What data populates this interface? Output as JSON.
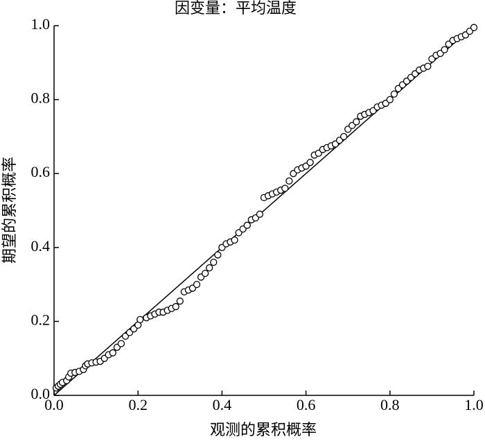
{
  "chart_data": {
    "type": "scatter",
    "title": "因变量：平均温度",
    "xlabel": "观测的累积概率",
    "ylabel": "期望的累积概率",
    "color": "#000000",
    "x": [
      0.005,
      0.01,
      0.015,
      0.02,
      0.03,
      0.035,
      0.04,
      0.05,
      0.06,
      0.07,
      0.075,
      0.08,
      0.09,
      0.1,
      0.11,
      0.12,
      0.13,
      0.14,
      0.15,
      0.16,
      0.17,
      0.18,
      0.19,
      0.2,
      0.205,
      0.22,
      0.23,
      0.24,
      0.25,
      0.26,
      0.27,
      0.28,
      0.29,
      0.3,
      0.31,
      0.32,
      0.33,
      0.34,
      0.35,
      0.36,
      0.37,
      0.38,
      0.39,
      0.4,
      0.41,
      0.42,
      0.43,
      0.44,
      0.45,
      0.46,
      0.47,
      0.48,
      0.49,
      0.5,
      0.51,
      0.52,
      0.53,
      0.54,
      0.55,
      0.56,
      0.57,
      0.58,
      0.59,
      0.6,
      0.61,
      0.62,
      0.63,
      0.64,
      0.65,
      0.66,
      0.67,
      0.68,
      0.69,
      0.7,
      0.71,
      0.72,
      0.73,
      0.74,
      0.75,
      0.76,
      0.77,
      0.78,
      0.79,
      0.8,
      0.81,
      0.82,
      0.83,
      0.84,
      0.85,
      0.86,
      0.87,
      0.88,
      0.89,
      0.9,
      0.91,
      0.92,
      0.93,
      0.94,
      0.95,
      0.96,
      0.97,
      0.98,
      0.99,
      1.0
    ],
    "values": [
      0.02,
      0.025,
      0.03,
      0.035,
      0.04,
      0.05,
      0.06,
      0.062,
      0.065,
      0.07,
      0.08,
      0.085,
      0.088,
      0.09,
      0.092,
      0.1,
      0.11,
      0.115,
      0.13,
      0.14,
      0.16,
      0.17,
      0.18,
      0.19,
      0.205,
      0.21,
      0.215,
      0.22,
      0.225,
      0.225,
      0.23,
      0.235,
      0.24,
      0.255,
      0.28,
      0.285,
      0.29,
      0.3,
      0.32,
      0.33,
      0.345,
      0.36,
      0.38,
      0.4,
      0.41,
      0.415,
      0.42,
      0.44,
      0.45,
      0.46,
      0.475,
      0.48,
      0.49,
      0.535,
      0.54,
      0.545,
      0.55,
      0.555,
      0.56,
      0.58,
      0.6,
      0.61,
      0.615,
      0.62,
      0.63,
      0.65,
      0.655,
      0.665,
      0.67,
      0.675,
      0.68,
      0.69,
      0.7,
      0.72,
      0.73,
      0.74,
      0.755,
      0.76,
      0.765,
      0.77,
      0.78,
      0.785,
      0.79,
      0.8,
      0.815,
      0.83,
      0.84,
      0.85,
      0.86,
      0.87,
      0.88,
      0.885,
      0.89,
      0.91,
      0.92,
      0.925,
      0.935,
      0.95,
      0.96,
      0.965,
      0.97,
      0.975,
      0.985,
      0.995
    ],
    "reference_line": {
      "x": [
        0,
        1
      ],
      "values": [
        0,
        1
      ]
    },
    "xlim": [
      0,
      1
    ],
    "ylim": [
      0,
      1
    ],
    "xticks": [
      {
        "value": 0,
        "label": "0.0"
      },
      0.2,
      0.4,
      0.6,
      0.8,
      {
        "value": 1,
        "label": "1.0"
      }
    ],
    "yticks": [
      {
        "value": 0,
        "label": "0.0"
      },
      0.2,
      0.4,
      0.6,
      0.8,
      {
        "value": 1,
        "label": "1.0"
      }
    ]
  }
}
